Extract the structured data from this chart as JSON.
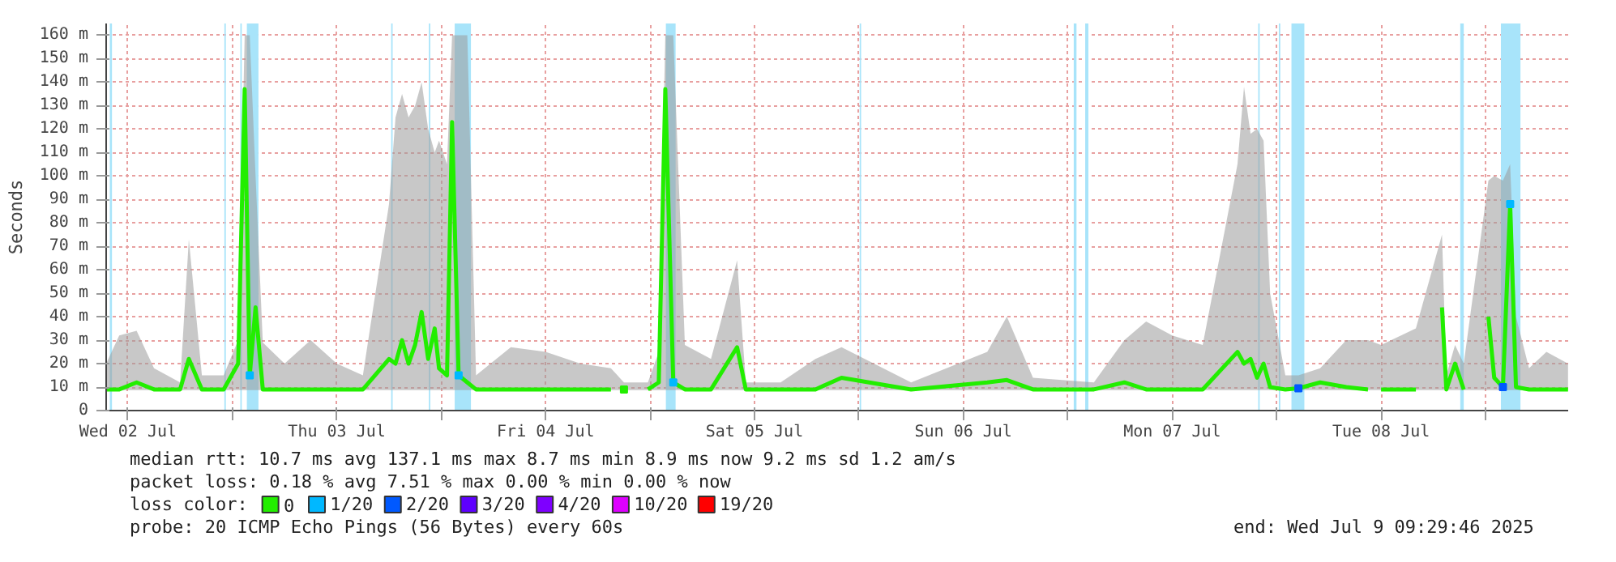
{
  "chart_data": {
    "type": "line",
    "ylabel": "Seconds",
    "xlim": [
      "2025-07-02T09:30",
      "2025-07-09T09:30"
    ],
    "xticks": [
      {
        "value": "2025-07-02T12:00",
        "label": "Wed 02 Jul"
      },
      {
        "value": "2025-07-03T00:00",
        "label": null
      },
      {
        "value": "2025-07-03T12:00",
        "label": "Thu 03 Jul"
      },
      {
        "value": "2025-07-04T00:00",
        "label": null
      },
      {
        "value": "2025-07-04T12:00",
        "label": "Fri 04 Jul"
      },
      {
        "value": "2025-07-05T00:00",
        "label": null
      },
      {
        "value": "2025-07-05T12:00",
        "label": "Sat 05 Jul"
      },
      {
        "value": "2025-07-06T00:00",
        "label": null
      },
      {
        "value": "2025-07-06T12:00",
        "label": "Sun 06 Jul"
      },
      {
        "value": "2025-07-07T00:00",
        "label": null
      },
      {
        "value": "2025-07-07T12:00",
        "label": "Mon 07 Jul"
      },
      {
        "value": "2025-07-08T00:00",
        "label": null
      },
      {
        "value": "2025-07-08T12:00",
        "label": "Tue 08 Jul"
      },
      {
        "value": "2025-07-09T00:00",
        "label": null
      }
    ],
    "ylim": [
      0,
      165
    ],
    "yticks": [
      0,
      {
        "value": 10,
        "label": "10 m"
      },
      {
        "value": 20,
        "label": "20 m"
      },
      {
        "value": 30,
        "label": "30 m"
      },
      {
        "value": 40,
        "label": "40 m"
      },
      {
        "value": 50,
        "label": "50 m"
      },
      {
        "value": 60,
        "label": "60 m"
      },
      {
        "value": 70,
        "label": "70 m"
      },
      {
        "value": 80,
        "label": "80 m"
      },
      {
        "value": 90,
        "label": "90 m"
      },
      {
        "value": 100,
        "label": "100 m"
      },
      {
        "value": 110,
        "label": "110 m"
      },
      {
        "value": 120,
        "label": "120 m"
      },
      {
        "value": 130,
        "label": "130 m"
      },
      {
        "value": 140,
        "label": "140 m"
      },
      {
        "value": 150,
        "label": "150 m"
      },
      {
        "value": 160,
        "label": "160 m"
      }
    ],
    "grid": true,
    "legend": "bottom",
    "legend_title": "loss color:",
    "x": [
      "2025-07-02T09:30",
      "2025-07-02T11:00",
      "2025-07-02T13:00",
      "2025-07-02T15:00",
      "2025-07-02T18:00",
      "2025-07-02T19:00",
      "2025-07-02T20:30",
      "2025-07-02T23:00",
      "2025-07-03T00:40",
      "2025-07-03T01:25",
      "2025-07-03T02:00",
      "2025-07-03T02:40",
      "2025-07-03T03:30",
      "2025-07-03T06:00",
      "2025-07-03T09:00",
      "2025-07-03T12:00",
      "2025-07-03T15:00",
      "2025-07-03T18:00",
      "2025-07-03T18:45",
      "2025-07-03T19:30",
      "2025-07-03T20:15",
      "2025-07-03T21:00",
      "2025-07-03T21:45",
      "2025-07-03T22:30",
      "2025-07-03T23:15",
      "2025-07-03T23:45",
      "2025-07-04T00:40",
      "2025-07-04T01:15",
      "2025-07-04T02:00",
      "2025-07-04T03:00",
      "2025-07-04T04:00",
      "2025-07-04T08:00",
      "2025-07-04T12:00",
      "2025-07-04T16:00",
      "2025-07-04T19:30",
      "2025-07-04T20:00",
      "2025-07-04T21:00",
      "2025-07-04T22:00",
      "2025-07-04T23:45",
      "2025-07-05T01:00",
      "2025-07-05T01:45",
      "2025-07-05T02:40",
      "2025-07-05T04:00",
      "2025-07-05T07:00",
      "2025-07-05T10:00",
      "2025-07-05T11:00",
      "2025-07-05T15:00",
      "2025-07-05T19:00",
      "2025-07-05T22:00",
      "2025-07-06T06:00",
      "2025-07-06T14:45",
      "2025-07-06T17:00",
      "2025-07-06T20:00",
      "2025-07-07T03:00",
      "2025-07-07T06:30",
      "2025-07-07T09:00",
      "2025-07-07T12:00",
      "2025-07-07T15:30",
      "2025-07-07T19:30",
      "2025-07-07T20:15",
      "2025-07-07T21:00",
      "2025-07-07T21:45",
      "2025-07-07T22:30",
      "2025-07-07T23:15",
      "2025-07-08T01:00",
      "2025-07-08T02:30",
      "2025-07-08T05:00",
      "2025-07-08T08:00",
      "2025-07-08T10:30",
      "2025-07-08T11:00",
      "2025-07-08T12:00",
      "2025-07-08T16:00",
      "2025-07-08T17:45",
      "2025-07-08T19:00",
      "2025-07-08T19:30",
      "2025-07-08T20:30",
      "2025-07-08T21:30",
      "2025-07-08T22:00",
      "2025-07-09T00:20",
      "2025-07-09T01:00",
      "2025-07-09T02:00",
      "2025-07-09T02:50",
      "2025-07-09T03:30",
      "2025-07-09T05:00",
      "2025-07-09T07:00",
      "2025-07-09T09:29"
    ],
    "series": [
      {
        "name": "0",
        "color": "#22ee00",
        "values": [
          9,
          9,
          12,
          9,
          9,
          22,
          9,
          9,
          20,
          137,
          15,
          44,
          9,
          9,
          9,
          9,
          9,
          22,
          20,
          30,
          20,
          28,
          42,
          22,
          35,
          18,
          15,
          123,
          15,
          12,
          9,
          9,
          9,
          9,
          9,
          null,
          9,
          null,
          9,
          12,
          137,
          12,
          9,
          9,
          27,
          9,
          9,
          9,
          14,
          9,
          12,
          13,
          9,
          9,
          12,
          9,
          9,
          9,
          25,
          20,
          22,
          14,
          20,
          10,
          9,
          9.5,
          12,
          10,
          9,
          null,
          9,
          9,
          null,
          44,
          9,
          20,
          9,
          null,
          40,
          14,
          10,
          88,
          10,
          9,
          9,
          9
        ],
        "lower": [
          8.7,
          8.7,
          8.7,
          8.7,
          8.7,
          8.7,
          8.7,
          8.7,
          8.7,
          8.7,
          8.7,
          8.7,
          8.7,
          8.7,
          8.7,
          8.7,
          8.7,
          8.7,
          8.7,
          8.7,
          8.7,
          8.7,
          8.7,
          8.7,
          8.7,
          8.7,
          8.7,
          8.7,
          8.7,
          8.7,
          8.7,
          8.7,
          8.7,
          8.7,
          8.7,
          null,
          8.7,
          null,
          8.7,
          8.7,
          8.7,
          8.7,
          8.7,
          8.7,
          8.7,
          8.7,
          8.7,
          8.7,
          8.7,
          8.7,
          8.7,
          8.7,
          8.7,
          8.7,
          8.7,
          8.7,
          8.7,
          8.7,
          8.7,
          8.7,
          8.7,
          8.7,
          8.7,
          8.7,
          8.7,
          8.7,
          8.7,
          8.7,
          8.7,
          null,
          8.7,
          8.7,
          null,
          8.7,
          8.7,
          8.7,
          8.7,
          null,
          8.7,
          8.7,
          8.7,
          8.7,
          8.7,
          8.7,
          8.7,
          8.7
        ],
        "upper": [
          20,
          32,
          34,
          18,
          12,
          73,
          15,
          15,
          30,
          160,
          160,
          100,
          29,
          20,
          30,
          20,
          15,
          88,
          125,
          135,
          125,
          130,
          140,
          120,
          110,
          115,
          105,
          160,
          160,
          160,
          15,
          27,
          25,
          20,
          18,
          null,
          12,
          null,
          12,
          25,
          160,
          160,
          28,
          22,
          64,
          12,
          12,
          22,
          27,
          12,
          25,
          40,
          14,
          12,
          30,
          38,
          32,
          28,
          105,
          138,
          118,
          120,
          115,
          50,
          15,
          15,
          18,
          30,
          30,
          null,
          28,
          35,
          null,
          75,
          15,
          28,
          20,
          null,
          98,
          100,
          98,
          105,
          40,
          18,
          25,
          20
        ]
      },
      {
        "name": "1/20",
        "color": "#00b8ff",
        "type": "scatter",
        "marker": "square",
        "x": [
          "2025-07-03T02:00",
          "2025-07-04T02:00",
          "2025-07-05T02:40",
          "2025-07-09T02:50"
        ],
        "values": [
          15,
          15,
          12,
          88
        ]
      },
      {
        "name": "2/20",
        "color": "#0059ff",
        "type": "scatter",
        "marker": "square",
        "x": [
          "2025-07-08T02:30",
          "2025-07-09T02:00"
        ],
        "values": [
          9.5,
          10
        ]
      },
      {
        "name": "3/20",
        "color": "#5e00ff",
        "type": "scatter",
        "marker": "square",
        "values": [
          null,
          null,
          null,
          null,
          null,
          null,
          null,
          null,
          null,
          null,
          null,
          null,
          null,
          null,
          null,
          null,
          null,
          null,
          null,
          null,
          null,
          null,
          null,
          null,
          null,
          null,
          null,
          null,
          null,
          null,
          null,
          null,
          null,
          null,
          null,
          null,
          null,
          null,
          null,
          null,
          null,
          null,
          null,
          null,
          null,
          null,
          null,
          null,
          null,
          null,
          null,
          null,
          null,
          null,
          null,
          null,
          null,
          null,
          null,
          null,
          null,
          null,
          null,
          null,
          null,
          null,
          null,
          null,
          null,
          null,
          null,
          null,
          null,
          null,
          null,
          null,
          null,
          null,
          null,
          null,
          null,
          null,
          null,
          null,
          null,
          null
        ]
      },
      {
        "name": "4/20",
        "color": "#7e00ff",
        "type": "scatter",
        "marker": "square",
        "values": [
          null,
          null,
          null,
          null,
          null,
          null,
          null,
          null,
          null,
          null,
          null,
          null,
          null,
          null,
          null,
          null,
          null,
          null,
          null,
          null,
          null,
          null,
          null,
          null,
          null,
          null,
          null,
          null,
          null,
          null,
          null,
          null,
          null,
          null,
          null,
          null,
          null,
          null,
          null,
          null,
          null,
          null,
          null,
          null,
          null,
          null,
          null,
          null,
          null,
          null,
          null,
          null,
          null,
          null,
          null,
          null,
          null,
          null,
          null,
          null,
          null,
          null,
          null,
          null,
          null,
          null,
          null,
          null,
          null,
          null,
          null,
          null,
          null,
          null,
          null,
          null,
          null,
          null,
          null,
          null,
          null,
          null,
          null,
          null,
          null,
          null
        ]
      },
      {
        "name": "10/20",
        "color": "#dd00ff",
        "type": "scatter",
        "marker": "square",
        "values": [
          null,
          null,
          null,
          null,
          null,
          null,
          null,
          null,
          null,
          null,
          null,
          null,
          null,
          null,
          null,
          null,
          null,
          null,
          null,
          null,
          null,
          null,
          null,
          null,
          null,
          null,
          null,
          null,
          null,
          null,
          null,
          null,
          null,
          null,
          null,
          null,
          null,
          null,
          null,
          null,
          null,
          null,
          null,
          null,
          null,
          null,
          null,
          null,
          null,
          null,
          null,
          null,
          null,
          null,
          null,
          null,
          null,
          null,
          null,
          null,
          null,
          null,
          null,
          null,
          null,
          null,
          null,
          null,
          null,
          null,
          null,
          null,
          null,
          null,
          null,
          null,
          null,
          null,
          null,
          null,
          null,
          null,
          null,
          null,
          null,
          null
        ]
      },
      {
        "name": "19/20",
        "color": "#ff0000",
        "type": "scatter",
        "marker": "square",
        "values": [
          null,
          null,
          null,
          null,
          null,
          null,
          null,
          null,
          null,
          null,
          null,
          null,
          null,
          null,
          null,
          null,
          null,
          null,
          null,
          null,
          null,
          null,
          null,
          null,
          null,
          null,
          null,
          null,
          null,
          null,
          null,
          null,
          null,
          null,
          null,
          null,
          null,
          null,
          null,
          null,
          null,
          null,
          null,
          null,
          null,
          null,
          null,
          null,
          null,
          null,
          null,
          null,
          null,
          null,
          null,
          null,
          null,
          null,
          null,
          null,
          null,
          null,
          null,
          null,
          null,
          null,
          null,
          null,
          null,
          null,
          null,
          null,
          null,
          null,
          null,
          null,
          null,
          null,
          null,
          null,
          null,
          null,
          null,
          null,
          null,
          null
        ]
      }
    ],
    "bands": [
      {
        "axis": "x",
        "from": "2025-07-02T09:55",
        "to": "2025-07-02T10:10",
        "color": "#a8e4fa"
      },
      {
        "axis": "x",
        "from": "2025-07-02T23:05",
        "to": "2025-07-02T23:15",
        "color": "#a8e4fa"
      },
      {
        "axis": "x",
        "from": "2025-07-03T00:55",
        "to": "2025-07-03T01:05",
        "color": "#a8e4fa"
      },
      {
        "axis": "x",
        "from": "2025-07-03T01:40",
        "to": "2025-07-03T03:00",
        "color": "#a8e4fa"
      },
      {
        "axis": "x",
        "from": "2025-07-03T18:15",
        "to": "2025-07-03T18:25",
        "color": "#a8e4fa"
      },
      {
        "axis": "x",
        "from": "2025-07-03T22:35",
        "to": "2025-07-03T22:45",
        "color": "#a8e4fa"
      },
      {
        "axis": "x",
        "from": "2025-07-04T01:33",
        "to": "2025-07-04T03:25",
        "color": "#a8e4fa"
      },
      {
        "axis": "x",
        "from": "2025-07-05T01:49",
        "to": "2025-07-05T02:56",
        "color": "#a8e4fa"
      },
      {
        "axis": "x",
        "from": "2025-07-06T00:05",
        "to": "2025-07-06T00:15",
        "color": "#a8e4fa"
      },
      {
        "axis": "x",
        "from": "2025-07-07T00:41",
        "to": "2025-07-07T01:00",
        "color": "#a8e4fa"
      },
      {
        "axis": "x",
        "from": "2025-07-07T02:00",
        "to": "2025-07-07T02:22",
        "color": "#a8e4fa"
      },
      {
        "axis": "x",
        "from": "2025-07-07T21:53",
        "to": "2025-07-07T22:03",
        "color": "#a8e4fa"
      },
      {
        "axis": "x",
        "from": "2025-07-08T00:15",
        "to": "2025-07-08T00:25",
        "color": "#a8e4fa"
      },
      {
        "axis": "x",
        "from": "2025-07-08T01:42",
        "to": "2025-07-08T03:11",
        "color": "#a8e4fa"
      },
      {
        "axis": "x",
        "from": "2025-07-08T21:06",
        "to": "2025-07-08T21:30",
        "color": "#a8e4fa"
      },
      {
        "axis": "x",
        "from": "2025-07-09T01:46",
        "to": "2025-07-09T04:01",
        "color": "#a8e4fa"
      }
    ],
    "annotations": [
      "median rtt:  10.7 ms avg  137.1 ms max  8.7 ms min  8.9 ms now  9.2 ms sd  1.2   am/s",
      "packet loss: 0.18 % avg  7.51 % max  0.00 % min  0.00 % now",
      "probe:       20 ICMP Echo Pings (56 Bytes) every 60s",
      "end: Wed Jul  9 09:29:46 2025"
    ]
  }
}
